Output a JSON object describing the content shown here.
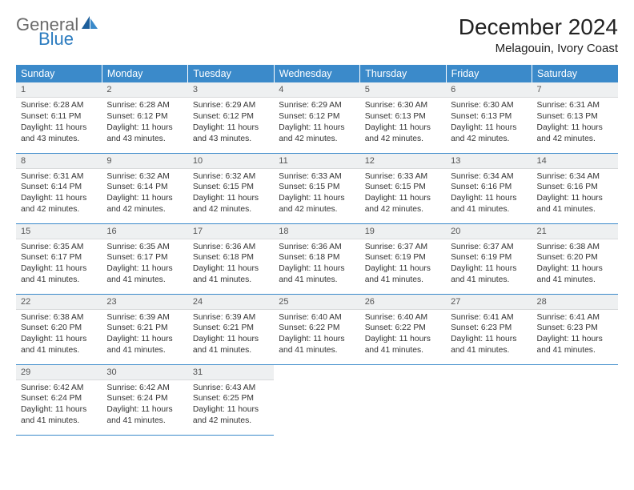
{
  "logo": {
    "text1": "General",
    "text2": "Blue"
  },
  "title": "December 2024",
  "location": "Melagouin, Ivory Coast",
  "header_bg": "#3b8aca",
  "weekdays": [
    "Sunday",
    "Monday",
    "Tuesday",
    "Wednesday",
    "Thursday",
    "Friday",
    "Saturday"
  ],
  "days": [
    {
      "n": "1",
      "sr": "6:28 AM",
      "ss": "6:11 PM",
      "dl": "11 hours and 43 minutes."
    },
    {
      "n": "2",
      "sr": "6:28 AM",
      "ss": "6:12 PM",
      "dl": "11 hours and 43 minutes."
    },
    {
      "n": "3",
      "sr": "6:29 AM",
      "ss": "6:12 PM",
      "dl": "11 hours and 43 minutes."
    },
    {
      "n": "4",
      "sr": "6:29 AM",
      "ss": "6:12 PM",
      "dl": "11 hours and 42 minutes."
    },
    {
      "n": "5",
      "sr": "6:30 AM",
      "ss": "6:13 PM",
      "dl": "11 hours and 42 minutes."
    },
    {
      "n": "6",
      "sr": "6:30 AM",
      "ss": "6:13 PM",
      "dl": "11 hours and 42 minutes."
    },
    {
      "n": "7",
      "sr": "6:31 AM",
      "ss": "6:13 PM",
      "dl": "11 hours and 42 minutes."
    },
    {
      "n": "8",
      "sr": "6:31 AM",
      "ss": "6:14 PM",
      "dl": "11 hours and 42 minutes."
    },
    {
      "n": "9",
      "sr": "6:32 AM",
      "ss": "6:14 PM",
      "dl": "11 hours and 42 minutes."
    },
    {
      "n": "10",
      "sr": "6:32 AM",
      "ss": "6:15 PM",
      "dl": "11 hours and 42 minutes."
    },
    {
      "n": "11",
      "sr": "6:33 AM",
      "ss": "6:15 PM",
      "dl": "11 hours and 42 minutes."
    },
    {
      "n": "12",
      "sr": "6:33 AM",
      "ss": "6:15 PM",
      "dl": "11 hours and 42 minutes."
    },
    {
      "n": "13",
      "sr": "6:34 AM",
      "ss": "6:16 PM",
      "dl": "11 hours and 41 minutes."
    },
    {
      "n": "14",
      "sr": "6:34 AM",
      "ss": "6:16 PM",
      "dl": "11 hours and 41 minutes."
    },
    {
      "n": "15",
      "sr": "6:35 AM",
      "ss": "6:17 PM",
      "dl": "11 hours and 41 minutes."
    },
    {
      "n": "16",
      "sr": "6:35 AM",
      "ss": "6:17 PM",
      "dl": "11 hours and 41 minutes."
    },
    {
      "n": "17",
      "sr": "6:36 AM",
      "ss": "6:18 PM",
      "dl": "11 hours and 41 minutes."
    },
    {
      "n": "18",
      "sr": "6:36 AM",
      "ss": "6:18 PM",
      "dl": "11 hours and 41 minutes."
    },
    {
      "n": "19",
      "sr": "6:37 AM",
      "ss": "6:19 PM",
      "dl": "11 hours and 41 minutes."
    },
    {
      "n": "20",
      "sr": "6:37 AM",
      "ss": "6:19 PM",
      "dl": "11 hours and 41 minutes."
    },
    {
      "n": "21",
      "sr": "6:38 AM",
      "ss": "6:20 PM",
      "dl": "11 hours and 41 minutes."
    },
    {
      "n": "22",
      "sr": "6:38 AM",
      "ss": "6:20 PM",
      "dl": "11 hours and 41 minutes."
    },
    {
      "n": "23",
      "sr": "6:39 AM",
      "ss": "6:21 PM",
      "dl": "11 hours and 41 minutes."
    },
    {
      "n": "24",
      "sr": "6:39 AM",
      "ss": "6:21 PM",
      "dl": "11 hours and 41 minutes."
    },
    {
      "n": "25",
      "sr": "6:40 AM",
      "ss": "6:22 PM",
      "dl": "11 hours and 41 minutes."
    },
    {
      "n": "26",
      "sr": "6:40 AM",
      "ss": "6:22 PM",
      "dl": "11 hours and 41 minutes."
    },
    {
      "n": "27",
      "sr": "6:41 AM",
      "ss": "6:23 PM",
      "dl": "11 hours and 41 minutes."
    },
    {
      "n": "28",
      "sr": "6:41 AM",
      "ss": "6:23 PM",
      "dl": "11 hours and 41 minutes."
    },
    {
      "n": "29",
      "sr": "6:42 AM",
      "ss": "6:24 PM",
      "dl": "11 hours and 41 minutes."
    },
    {
      "n": "30",
      "sr": "6:42 AM",
      "ss": "6:24 PM",
      "dl": "11 hours and 41 minutes."
    },
    {
      "n": "31",
      "sr": "6:43 AM",
      "ss": "6:25 PM",
      "dl": "11 hours and 42 minutes."
    }
  ],
  "labels": {
    "sunrise": "Sunrise:",
    "sunset": "Sunset:",
    "daylight": "Daylight:"
  },
  "style": {
    "cell_font_size": 10.3,
    "header_font_size": 12.5,
    "title_font_size": 28,
    "location_font_size": 15,
    "daynum_bg": "#eef0f1",
    "border_color": "#3b8aca",
    "text_color": "#333333",
    "logo_gray": "#6a6a6a",
    "logo_blue": "#2b7bbf"
  }
}
